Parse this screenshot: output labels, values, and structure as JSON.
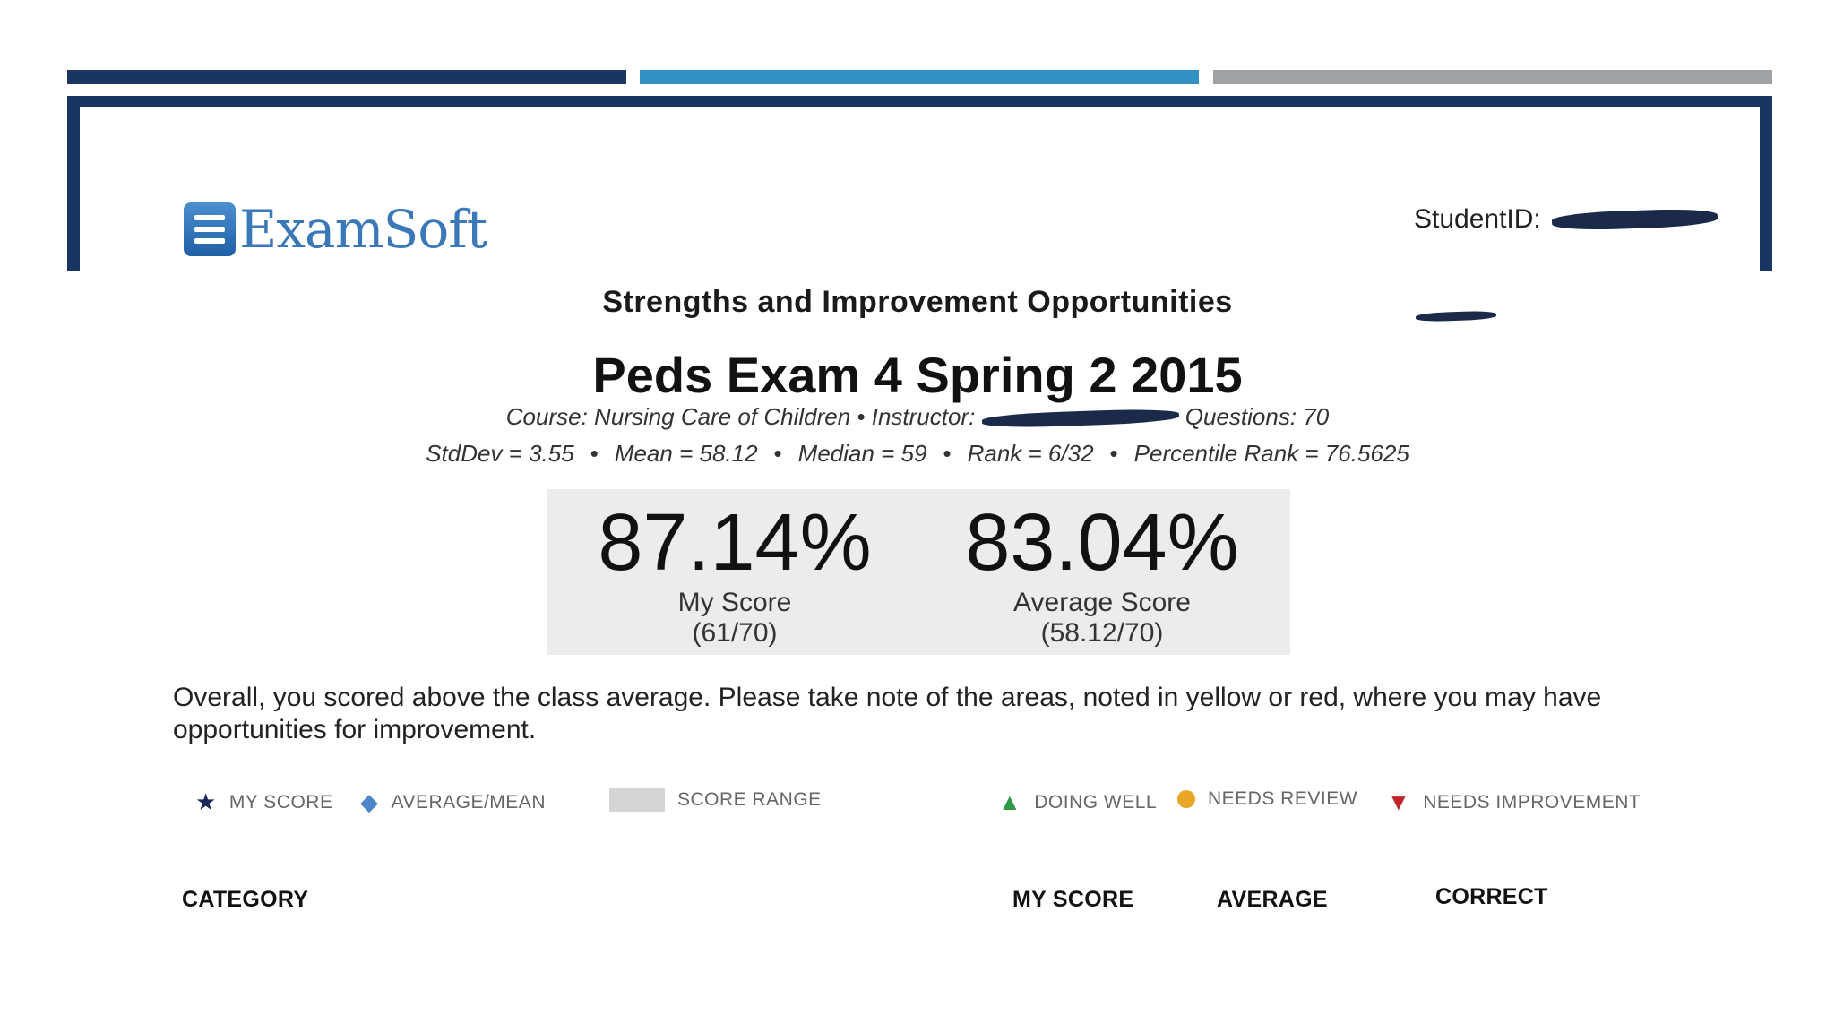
{
  "brand": {
    "name": "ExamSoft"
  },
  "student": {
    "id_label": "StudentID:"
  },
  "report": {
    "section_title": "Strengths and Improvement Opportunities",
    "exam_title": "Peds Exam 4 Spring 2 2015",
    "course_prefix": "Course: Nursing Care of Children • Instructor:",
    "questions": "Questions: 70",
    "stats": {
      "stddev": "StdDev = 3.55",
      "mean": "Mean = 58.12",
      "median": "Median = 59",
      "rank": "Rank = 6/32",
      "percentile": "Percentile Rank = 76.5625"
    },
    "separator": "•"
  },
  "scores": {
    "my": {
      "value": "87.14%",
      "label": "My Score",
      "detail": "(61/70)"
    },
    "average": {
      "value": "83.04%",
      "label": "Average Score",
      "detail": "(58.12/70)"
    }
  },
  "summary": "Overall, you scored above the class average. Please take note of the areas, noted in yellow or red, where you may have opportunities for improvement.",
  "legend": {
    "my_score": "MY SCORE",
    "average": "AVERAGE/MEAN",
    "range": "SCORE RANGE",
    "doing_well": "DOING WELL",
    "needs_review": "NEEDS REVIEW",
    "needs_improvement": "NEEDS IMPROVEMENT"
  },
  "table": {
    "headers": {
      "category": "CATEGORY",
      "my_score": "MY SCORE",
      "average": "AVERAGE",
      "correct": "CORRECT"
    }
  },
  "colors": {
    "navy": "#1b3562",
    "blue": "#3390c4",
    "gray": "#9ea2a5",
    "doing_well": "#2e9a47",
    "needs_review": "#e8a526",
    "needs_improvement": "#c0242b"
  }
}
